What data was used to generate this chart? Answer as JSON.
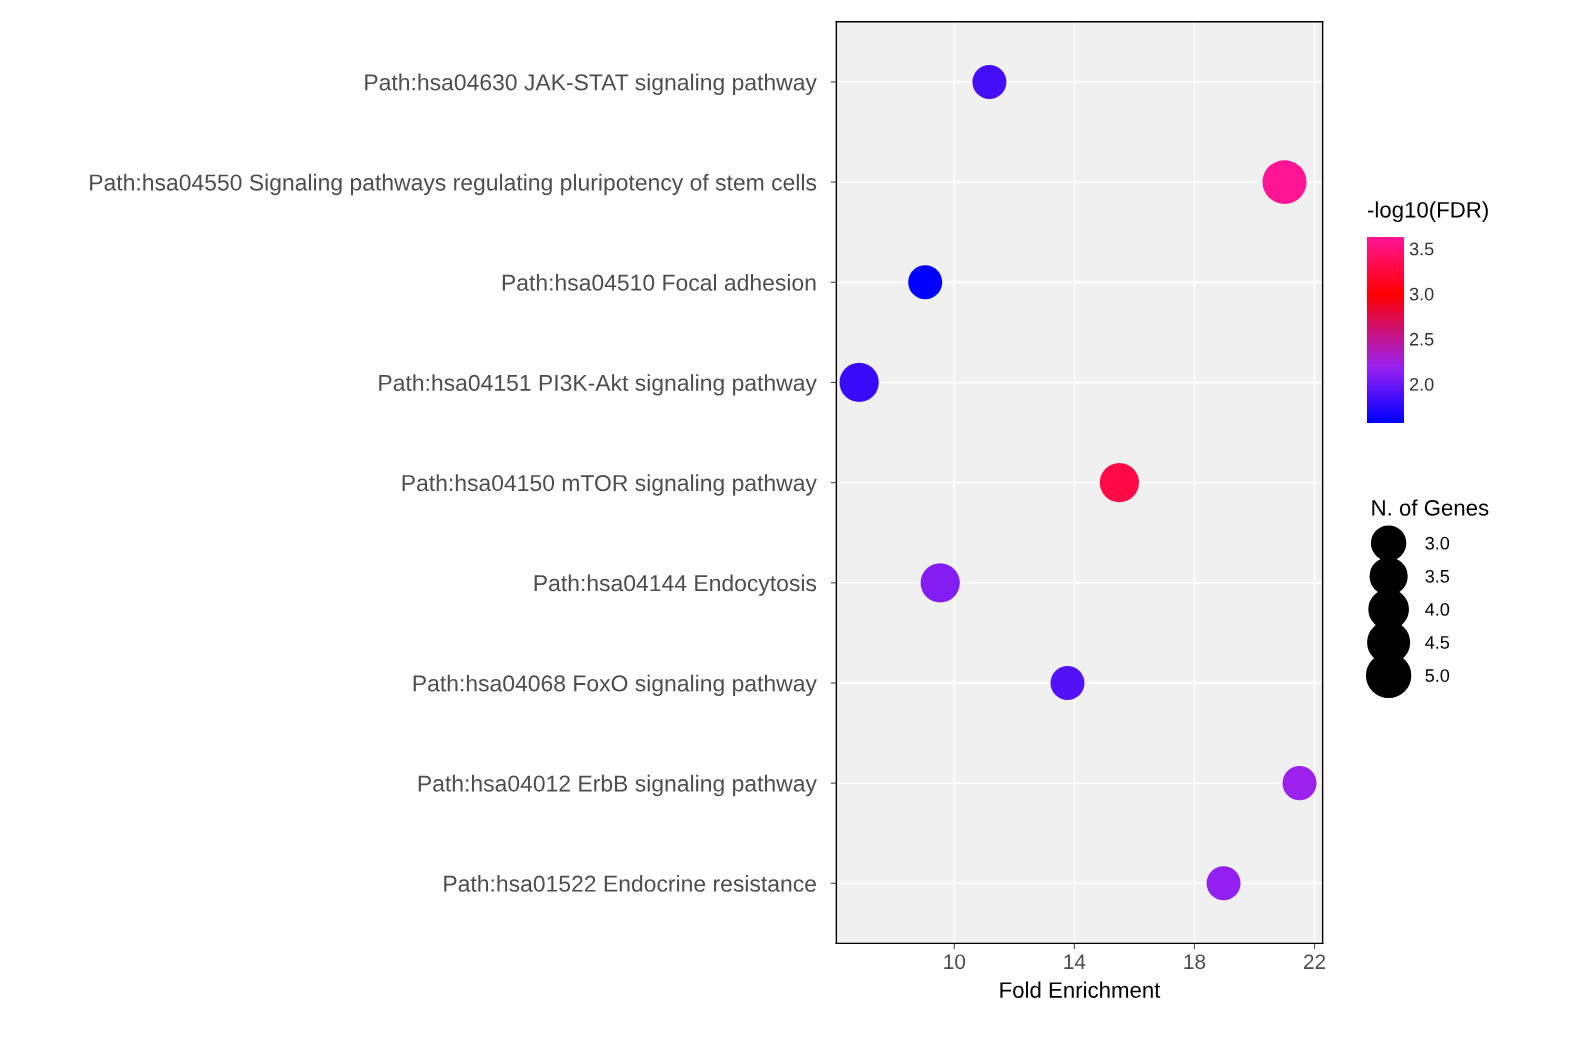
{
  "chart_data": {
    "type": "bubble",
    "xlabel": "Fold Enrichment",
    "categories": [
      "Path:hsa04630 JAK-STAT signaling pathway",
      "Path:hsa04550 Signaling pathways regulating pluripotency of stem cells",
      "Path:hsa04510 Focal adhesion",
      "Path:hsa04151 PI3K-Akt signaling pathway",
      "Path:hsa04150 mTOR signaling pathway",
      "Path:hsa04144 Endocytosis",
      "Path:hsa04068 FoxO signaling pathway",
      "Path:hsa04012 ErbB signaling pathway",
      "Path:hsa01522 Endocrine resistance"
    ],
    "orientation": "horizontal",
    "values": [
      11.17,
      21.0,
      9.03,
      6.83,
      15.5,
      9.53,
      13.77,
      21.5,
      18.97
    ],
    "sizes": [
      3.0,
      5.0,
      3.0,
      4.0,
      4.0,
      4.0,
      3.0,
      3.0,
      3.0
    ],
    "cvalues": [
      1.85,
      3.63,
      1.57,
      1.8,
      3.3,
      2.1,
      1.9,
      2.2,
      2.15
    ],
    "clabel": "-log10(FDR)",
    "clim": [
      1.57,
      3.63
    ],
    "cticks": [
      {
        "value": 2.0,
        "label": "2.0"
      },
      {
        "value": 2.5,
        "label": "2.5"
      },
      {
        "value": 3.0,
        "label": "3.0"
      },
      {
        "value": 3.5,
        "label": "3.5"
      }
    ],
    "legend_title": "N. of Genes",
    "size_legend": [
      {
        "value": 3.0,
        "label": "3.0"
      },
      {
        "value": 3.5,
        "label": "3.5"
      },
      {
        "value": 4.0,
        "label": "4.0"
      },
      {
        "value": 4.5,
        "label": "4.5"
      },
      {
        "value": 5.0,
        "label": "5.0"
      }
    ],
    "xlim": [
      6.07,
      22.27
    ],
    "xticks": [
      10,
      14,
      18,
      22
    ],
    "grid": true
  }
}
